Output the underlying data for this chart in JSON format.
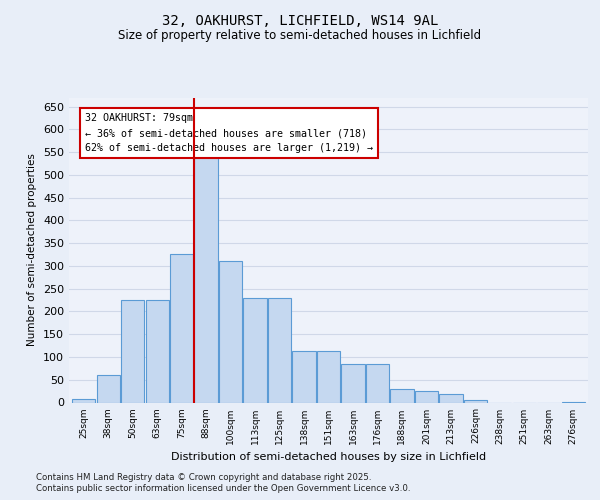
{
  "title_line1": "32, OAKHURST, LICHFIELD, WS14 9AL",
  "title_line2": "Size of property relative to semi-detached houses in Lichfield",
  "xlabel": "Distribution of semi-detached houses by size in Lichfield",
  "ylabel": "Number of semi-detached properties",
  "categories": [
    "25sqm",
    "38sqm",
    "50sqm",
    "63sqm",
    "75sqm",
    "88sqm",
    "100sqm",
    "113sqm",
    "125sqm",
    "138sqm",
    "151sqm",
    "163sqm",
    "176sqm",
    "188sqm",
    "201sqm",
    "213sqm",
    "226sqm",
    "238sqm",
    "251sqm",
    "263sqm",
    "276sqm"
  ],
  "bar_heights": [
    8,
    60,
    226,
    226,
    327,
    540,
    310,
    230,
    230,
    113,
    113,
    84,
    84,
    29,
    25,
    19,
    5,
    0,
    0,
    0,
    2
  ],
  "bar_color": "#c5d8f0",
  "bar_edge_color": "#5b9bd5",
  "vline_pos": 4.5,
  "vline_color": "#cc0000",
  "annotation_text": "32 OAKHURST: 79sqm\n← 36% of semi-detached houses are smaller (718)\n62% of semi-detached houses are larger (1,219) →",
  "annotation_box_facecolor": "#ffffff",
  "annotation_box_edgecolor": "#cc0000",
  "ylim_max": 670,
  "yticks": [
    0,
    50,
    100,
    150,
    200,
    250,
    300,
    350,
    400,
    450,
    500,
    550,
    600,
    650
  ],
  "footer_line1": "Contains HM Land Registry data © Crown copyright and database right 2025.",
  "footer_line2": "Contains public sector information licensed under the Open Government Licence v3.0.",
  "background_color": "#e8eef8",
  "grid_color": "#d0d8e8",
  "plot_bg_color": "#eef2fa"
}
